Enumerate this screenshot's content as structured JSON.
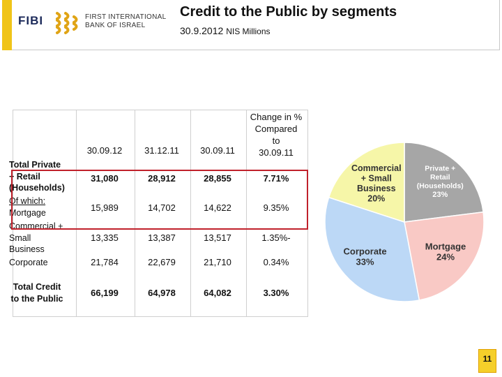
{
  "header": {
    "brand_word": "FIBI",
    "bank_name_line1": "FIRST INTERNATIONAL",
    "bank_name_line2": "BANK OF ISRAEL",
    "title": "Credit to the Public by segments",
    "subtitle_date": "30.9.2012",
    "subtitle_unit": "NIS Millions",
    "accent_color": "#f0c418"
  },
  "table": {
    "columns": [
      "30.09.12",
      "31.12.11",
      "30.09.11",
      "Change in % Compared to 30.09.11"
    ],
    "change_header_lines": [
      "Change in %",
      "Compared",
      "to",
      "30.09.11"
    ],
    "rows": [
      {
        "label_lines": [
          "Total Private",
          "+ Retail",
          "(Households)"
        ],
        "values": [
          "31,080",
          "28,912",
          "28,855",
          "7.71%"
        ]
      },
      {
        "label_lines": [
          "Of which:",
          "Mortgage"
        ],
        "values": [
          "15,989",
          "14,702",
          "14,622",
          "9.35%"
        ]
      },
      {
        "label_lines": [
          "Commercial +",
          "Small",
          "Business"
        ],
        "values": [
          "13,335",
          "13,387",
          "13,517",
          "1.35%-"
        ]
      },
      {
        "label_lines": [
          "Corporate"
        ],
        "values": [
          "21,784",
          "22,679",
          "21,710",
          "0.34%"
        ]
      },
      {
        "label_lines": [
          "Total Credit",
          "to the Public"
        ],
        "values": [
          "66,199",
          "64,978",
          "64,082",
          "3.30%"
        ]
      }
    ]
  },
  "chart_data": {
    "type": "pie",
    "title": "",
    "slices": [
      {
        "name": "Private + Retail (Households)",
        "label_lines": [
          "Private +",
          "Retail",
          "(Households)"
        ],
        "percent_label": "23%",
        "value": 23,
        "color": "#a6a6a6"
      },
      {
        "name": "Mortgage",
        "label_lines": [
          "Mortgage"
        ],
        "percent_label": "24%",
        "value": 24,
        "color": "#f9c9c5"
      },
      {
        "name": "Corporate",
        "label_lines": [
          "Corporate"
        ],
        "percent_label": "33%",
        "value": 33,
        "color": "#bcd8f6"
      },
      {
        "name": "Commercial + Small Business",
        "label_lines": [
          "Commercial",
          "+ Small",
          "Business"
        ],
        "percent_label": "20%",
        "value": 20,
        "color": "#f6f6a8"
      }
    ]
  },
  "page_number": "11"
}
